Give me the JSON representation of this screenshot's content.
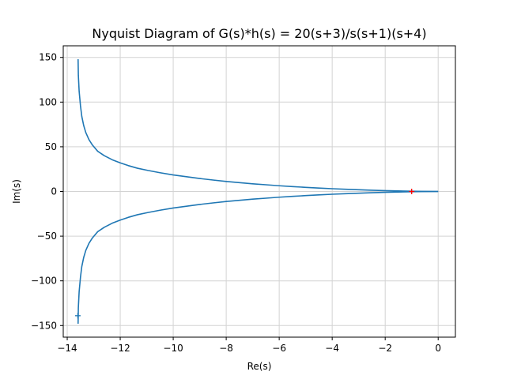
{
  "chart_data": {
    "type": "line",
    "title": "Nyquist Diagram of G(s)*h(s) = 20(s+3)/s(s+1)(s+4)",
    "xlabel": "Re(s)",
    "ylabel": "Im(s)",
    "xlim": [
      -14.15,
      0.65
    ],
    "ylim": [
      -163,
      163
    ],
    "xticks": [
      -14,
      -12,
      -10,
      -8,
      -6,
      -4,
      -2,
      0
    ],
    "yticks": [
      -150,
      -100,
      -50,
      0,
      50,
      100,
      150
    ],
    "grid": true,
    "series": [
      {
        "color": "#1f77b4",
        "x": [
          -13.59,
          -13.58,
          -13.55,
          -13.5,
          -13.45,
          -13.38,
          -13.3,
          -13.18,
          -13.05,
          -12.85,
          -12.6,
          -12.3,
          -12.0,
          -11.7,
          -11.35,
          -10.95,
          -10.5,
          -10.0,
          -9.5,
          -9.0,
          -8.5,
          -8.0,
          -7.5,
          -7.0,
          -6.5,
          -6.0,
          -5.5,
          -5.0,
          -4.5,
          -4.0,
          -3.5,
          -3.0,
          -2.5,
          -2.0,
          -1.5,
          -1.0,
          -0.5,
          0.0
        ],
        "y": [
          -148,
          -130,
          -112,
          -96,
          -84,
          -74,
          -66,
          -58,
          -52,
          -45,
          -40,
          -35.5,
          -32,
          -29,
          -26,
          -23.5,
          -21,
          -18.5,
          -16.5,
          -14.5,
          -12.8,
          -11.2,
          -9.9,
          -8.6,
          -7.5,
          -6.4,
          -5.5,
          -4.6,
          -3.8,
          -3.1,
          -2.5,
          -1.9,
          -1.4,
          -0.9,
          -0.6,
          -0.3,
          -0.1,
          0.0
        ]
      },
      {
        "color": "#1f77b4",
        "x": [
          -13.59,
          -13.58,
          -13.55,
          -13.5,
          -13.45,
          -13.38,
          -13.3,
          -13.18,
          -13.05,
          -12.85,
          -12.6,
          -12.3,
          -12.0,
          -11.7,
          -11.35,
          -10.95,
          -10.5,
          -10.0,
          -9.5,
          -9.0,
          -8.5,
          -8.0,
          -7.5,
          -7.0,
          -6.5,
          -6.0,
          -5.5,
          -5.0,
          -4.5,
          -4.0,
          -3.5,
          -3.0,
          -2.5,
          -2.0,
          -1.5,
          -1.0,
          -0.5,
          0.0
        ],
        "y": [
          148,
          130,
          112,
          96,
          84,
          74,
          66,
          58,
          52,
          45,
          40,
          35.5,
          32,
          29,
          26,
          23.5,
          21,
          18.5,
          16.5,
          14.5,
          12.8,
          11.2,
          9.9,
          8.6,
          7.5,
          6.4,
          5.5,
          4.6,
          3.8,
          3.1,
          2.5,
          1.9,
          1.4,
          0.9,
          0.6,
          0.3,
          0.1,
          0.0
        ]
      }
    ],
    "markers": [
      {
        "x": -1,
        "y": 0,
        "symbol": "+",
        "color": "#ff0000"
      },
      {
        "x": -13.6,
        "y": -139,
        "symbol": "+",
        "color": "#1f77b4"
      }
    ]
  }
}
